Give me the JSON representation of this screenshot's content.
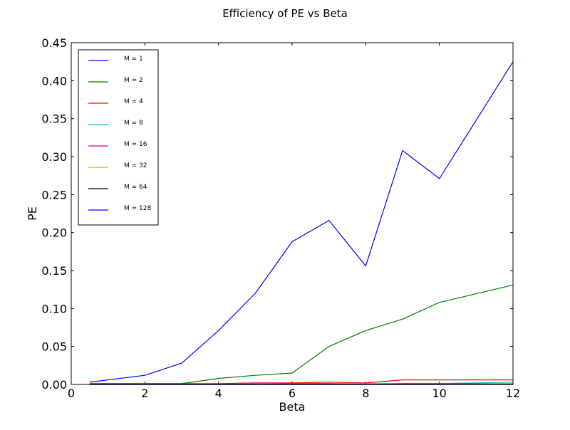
{
  "chart_data": {
    "type": "line",
    "title": "Efficiency of PE vs Beta",
    "xlabel": "Beta",
    "ylabel": "PE",
    "xlim": [
      0,
      12
    ],
    "ylim": [
      0,
      0.45
    ],
    "xticks": [
      "0",
      "2",
      "4",
      "6",
      "8",
      "10",
      "12"
    ],
    "yticks": [
      "0.00",
      "0.05",
      "0.10",
      "0.15",
      "0.20",
      "0.25",
      "0.30",
      "0.35",
      "0.40",
      "0.45"
    ],
    "grid": false,
    "legend_position": "top-left",
    "x": [
      0.5,
      2,
      3,
      4,
      5,
      6,
      7,
      8,
      9,
      10,
      12
    ],
    "series": [
      {
        "name": "M = 1",
        "color": "#0000ff",
        "values": [
          0.003,
          0.012,
          0.028,
          0.071,
          0.12,
          0.188,
          0.216,
          0.156,
          0.308,
          0.271,
          0.425
        ]
      },
      {
        "name": "M = 2",
        "color": "#008000",
        "values": [
          0.001,
          0.001,
          0.001,
          0.008,
          0.012,
          0.015,
          0.05,
          0.071,
          0.086,
          0.108,
          0.131
        ]
      },
      {
        "name": "M = 4",
        "color": "#ff0000",
        "values": [
          0.001,
          0.001,
          0.001,
          0.001,
          0.002,
          0.002,
          0.003,
          0.002,
          0.006,
          0.006,
          0.006
        ]
      },
      {
        "name": "M = 8",
        "color": "#00bfbf",
        "values": [
          0.0,
          0.0,
          0.0,
          0.0,
          0.001,
          0.001,
          0.001,
          0.001,
          0.001,
          0.001,
          0.003
        ]
      },
      {
        "name": "M = 16",
        "color": "#bf00bf",
        "values": [
          0.0,
          0.0,
          0.0,
          0.0,
          0.0,
          0.001,
          0.001,
          0.0,
          0.001,
          0.001,
          0.001
        ]
      },
      {
        "name": "M = 32",
        "color": "#bfbf00",
        "values": [
          0.0,
          0.0,
          0.0,
          0.0,
          0.0,
          0.0,
          0.0,
          0.0,
          0.0,
          0.0,
          0.001
        ]
      },
      {
        "name": "M = 64",
        "color": "#000000",
        "values": [
          0.0,
          0.0,
          0.0,
          0.0,
          0.0,
          0.0,
          0.0,
          0.0,
          0.0,
          0.0,
          0.0
        ]
      },
      {
        "name": "M = 128",
        "color": "#0000ff",
        "values": [
          0.0,
          0.0,
          0.0,
          0.0,
          0.0,
          0.0,
          0.0,
          0.0,
          0.0,
          0.0,
          0.0
        ]
      }
    ]
  }
}
